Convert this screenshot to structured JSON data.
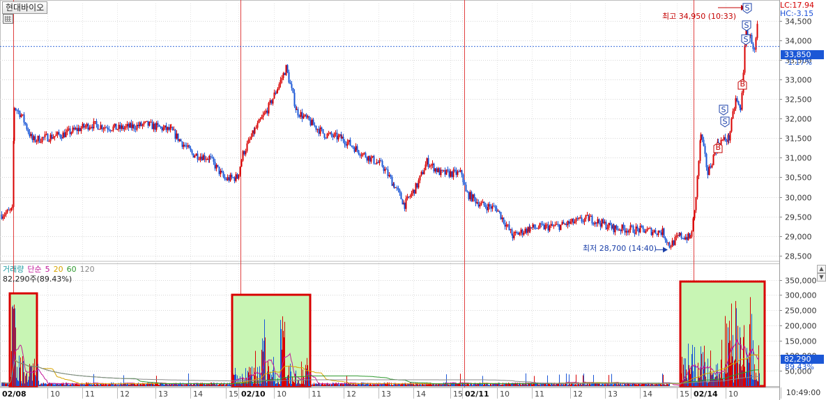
{
  "app": {
    "stock_name": "현대바이오"
  },
  "price_panel": {
    "lc_label": "LC:17.94",
    "hc_label": "HC:-3.15",
    "current_price": "33,850",
    "change_pct": "-1.17%",
    "high_annotation": "최고 34,950 (10:33)",
    "low_annotation": "최저 28,700 (14:40)",
    "y_ticks": [
      "34,500",
      "34,000",
      "33,500",
      "33,000",
      "32,500",
      "32,000",
      "31,500",
      "31,000",
      "30,500",
      "30,000",
      "29,500",
      "29,000",
      "28,500"
    ]
  },
  "volume_panel": {
    "legend": [
      {
        "text": "거래량",
        "color": "#1a9aa0"
      },
      {
        "text": "단순",
        "color": "#c2189a"
      },
      {
        "text": "5",
        "color": "#c2189a"
      },
      {
        "text": "20",
        "color": "#d7a400"
      },
      {
        "text": "60",
        "color": "#2e9a2e"
      },
      {
        "text": "120",
        "color": "#888888"
      }
    ],
    "current_volume": "82,290주(89.43%)",
    "volume_tag": "82,290",
    "volume_pct": "89.43%",
    "y_ticks": [
      "350,000",
      "300,000",
      "250,000",
      "200,000",
      "150,000",
      "100,000",
      "50,000"
    ]
  },
  "time_axis": {
    "labels": [
      "02/08",
      "10",
      "11",
      "12",
      "13",
      "14",
      "15",
      "02/10",
      "10",
      "11",
      "12",
      "13",
      "14",
      "15",
      "02/11",
      "10",
      "11",
      "12",
      "13",
      "14",
      "15",
      "02/14",
      "10"
    ],
    "current_time": "10:49:00"
  },
  "colors": {
    "up": "#d90000",
    "down": "#1a56d6",
    "highlight_box": "#d80000",
    "highlight_fill": "#c8f5b4"
  },
  "chart_data": {
    "type": "candlestick",
    "title": "현대바이오",
    "x_sessions": [
      "02/08",
      "02/10",
      "02/11",
      "02/14"
    ],
    "price_ylim": [
      28350,
      34950
    ],
    "volume_ylim": [
      0,
      365000
    ],
    "key_prices": [
      {
        "session": "02/08",
        "time": "09:00",
        "price": 29600
      },
      {
        "session": "02/08",
        "time": "09:30",
        "price": 32000
      },
      {
        "session": "02/08",
        "time": "13:00",
        "price": 31900
      },
      {
        "session": "02/08",
        "time": "14:40",
        "price": 30400
      },
      {
        "session": "02/10",
        "time": "10:10",
        "price": 33300
      },
      {
        "session": "02/10",
        "time": "12:00",
        "price": 31600
      },
      {
        "session": "02/10",
        "time": "14:30",
        "price": 31200
      },
      {
        "session": "02/11",
        "time": "10:00",
        "price": 29600
      },
      {
        "session": "02/11",
        "time": "13:00",
        "price": 29200
      },
      {
        "session": "02/11",
        "time": "14:40",
        "price": 28700
      },
      {
        "session": "02/14",
        "time": "09:00",
        "price": 29500
      },
      {
        "session": "02/14",
        "time": "09:30",
        "price": 31500
      },
      {
        "session": "02/14",
        "time": "10:33",
        "price": 34950
      },
      {
        "session": "02/14",
        "time": "10:49",
        "price": 33850
      }
    ],
    "high": {
      "price": 34950,
      "time": "10:33"
    },
    "low": {
      "price": 28700,
      "time": "14:40"
    },
    "signals": [
      {
        "type": "S",
        "session": "02/14",
        "price": 32600
      },
      {
        "type": "S",
        "session": "02/14",
        "price": 32000
      },
      {
        "type": "B",
        "session": "02/14",
        "price": 31200
      },
      {
        "type": "B",
        "session": "02/14",
        "price": 33050
      },
      {
        "type": "S",
        "session": "02/14",
        "price": 34150
      },
      {
        "type": "S",
        "session": "02/14",
        "price": 34550
      },
      {
        "type": "S",
        "session": "02/14",
        "price": 34950
      }
    ],
    "current": {
      "price": 33850,
      "change_pct": -1.17,
      "volume": 82290,
      "volume_pct": 89.43
    },
    "volume_moving_averages": [
      5,
      20,
      60,
      120
    ]
  }
}
